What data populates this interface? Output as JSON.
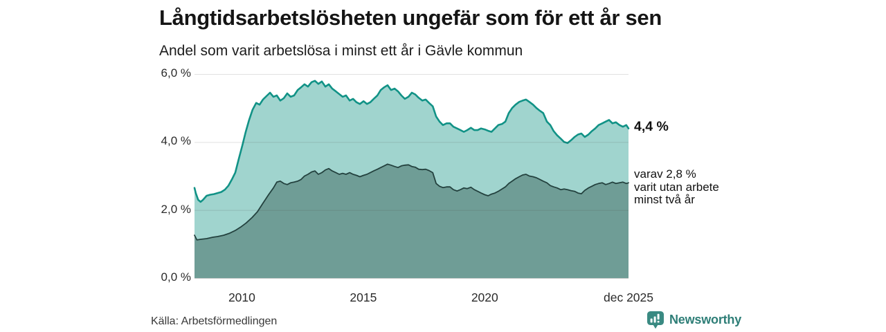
{
  "chart_data": {
    "type": "area",
    "title": "Långtidsarbetslösheten ungefär som för ett år sen",
    "subtitle": "Andel som varit arbetslösa i minst ett år i Gävle kommun",
    "unit": "%",
    "xlim": [
      2008.05,
      2025.92
    ],
    "ylim": [
      0,
      6
    ],
    "grid": true,
    "legend_position": "none",
    "x_ticks": [
      {
        "label": "2010",
        "year": 2010
      },
      {
        "label": "2015",
        "year": 2015
      },
      {
        "label": "2020",
        "year": 2020
      },
      {
        "label": "dec 2025",
        "year": 2025.92
      }
    ],
    "y_ticks": [
      {
        "label": "6,0 %",
        "value": 6
      },
      {
        "label": "4,0 %",
        "value": 4
      },
      {
        "label": "2,0 %",
        "value": 2
      },
      {
        "label": "0,0 %",
        "value": 0
      }
    ],
    "series": [
      {
        "id": "minst-ett-ar",
        "name": "Andel arbetslösa minst ett år",
        "latest_value": "4,4 %",
        "fill": "#a0d4ce",
        "stroke": "#119286",
        "stroke_width": 2.6,
        "points": [
          [
            2008.05,
            2.65
          ],
          [
            2008.1,
            2.5
          ],
          [
            2008.2,
            2.3
          ],
          [
            2008.3,
            2.24
          ],
          [
            2008.4,
            2.3
          ],
          [
            2008.55,
            2.42
          ],
          [
            2008.7,
            2.45
          ],
          [
            2008.85,
            2.47
          ],
          [
            2009.0,
            2.5
          ],
          [
            2009.15,
            2.53
          ],
          [
            2009.3,
            2.6
          ],
          [
            2009.45,
            2.72
          ],
          [
            2009.59,
            2.9
          ],
          [
            2009.73,
            3.1
          ],
          [
            2009.87,
            3.5
          ],
          [
            2010.02,
            3.9
          ],
          [
            2010.16,
            4.3
          ],
          [
            2010.3,
            4.65
          ],
          [
            2010.44,
            4.95
          ],
          [
            2010.59,
            5.15
          ],
          [
            2010.73,
            5.1
          ],
          [
            2010.87,
            5.25
          ],
          [
            2011.01,
            5.35
          ],
          [
            2011.16,
            5.45
          ],
          [
            2011.3,
            5.33
          ],
          [
            2011.44,
            5.37
          ],
          [
            2011.58,
            5.22
          ],
          [
            2011.73,
            5.29
          ],
          [
            2011.87,
            5.43
          ],
          [
            2012.01,
            5.33
          ],
          [
            2012.15,
            5.37
          ],
          [
            2012.3,
            5.53
          ],
          [
            2012.44,
            5.61
          ],
          [
            2012.58,
            5.7
          ],
          [
            2012.72,
            5.63
          ],
          [
            2012.87,
            5.76
          ],
          [
            2013.01,
            5.8
          ],
          [
            2013.15,
            5.71
          ],
          [
            2013.29,
            5.78
          ],
          [
            2013.44,
            5.63
          ],
          [
            2013.58,
            5.7
          ],
          [
            2013.72,
            5.57
          ],
          [
            2013.87,
            5.49
          ],
          [
            2014.01,
            5.41
          ],
          [
            2014.15,
            5.33
          ],
          [
            2014.29,
            5.37
          ],
          [
            2014.44,
            5.22
          ],
          [
            2014.58,
            5.27
          ],
          [
            2014.72,
            5.17
          ],
          [
            2014.86,
            5.12
          ],
          [
            2015.01,
            5.2
          ],
          [
            2015.15,
            5.12
          ],
          [
            2015.29,
            5.17
          ],
          [
            2015.43,
            5.27
          ],
          [
            2015.58,
            5.37
          ],
          [
            2015.72,
            5.53
          ],
          [
            2015.86,
            5.61
          ],
          [
            2016.0,
            5.67
          ],
          [
            2016.14,
            5.53
          ],
          [
            2016.29,
            5.57
          ],
          [
            2016.43,
            5.49
          ],
          [
            2016.57,
            5.37
          ],
          [
            2016.71,
            5.27
          ],
          [
            2016.86,
            5.33
          ],
          [
            2017.0,
            5.45
          ],
          [
            2017.14,
            5.4
          ],
          [
            2017.28,
            5.3
          ],
          [
            2017.43,
            5.22
          ],
          [
            2017.57,
            5.25
          ],
          [
            2017.71,
            5.15
          ],
          [
            2017.86,
            5.05
          ],
          [
            2018.0,
            4.75
          ],
          [
            2018.14,
            4.6
          ],
          [
            2018.28,
            4.5
          ],
          [
            2018.43,
            4.55
          ],
          [
            2018.57,
            4.55
          ],
          [
            2018.71,
            4.45
          ],
          [
            2018.86,
            4.4
          ],
          [
            2019.0,
            4.35
          ],
          [
            2019.14,
            4.3
          ],
          [
            2019.28,
            4.35
          ],
          [
            2019.43,
            4.42
          ],
          [
            2019.57,
            4.35
          ],
          [
            2019.71,
            4.35
          ],
          [
            2019.85,
            4.4
          ],
          [
            2020.0,
            4.37
          ],
          [
            2020.14,
            4.33
          ],
          [
            2020.28,
            4.3
          ],
          [
            2020.42,
            4.4
          ],
          [
            2020.56,
            4.5
          ],
          [
            2020.71,
            4.53
          ],
          [
            2020.85,
            4.6
          ],
          [
            2020.99,
            4.85
          ],
          [
            2021.13,
            5.0
          ],
          [
            2021.27,
            5.1
          ],
          [
            2021.42,
            5.18
          ],
          [
            2021.56,
            5.22
          ],
          [
            2021.7,
            5.25
          ],
          [
            2021.84,
            5.18
          ],
          [
            2021.99,
            5.1
          ],
          [
            2022.13,
            5.0
          ],
          [
            2022.27,
            4.92
          ],
          [
            2022.41,
            4.85
          ],
          [
            2022.56,
            4.6
          ],
          [
            2022.7,
            4.5
          ],
          [
            2022.84,
            4.32
          ],
          [
            2022.98,
            4.2
          ],
          [
            2023.13,
            4.1
          ],
          [
            2023.27,
            4.0
          ],
          [
            2023.41,
            3.97
          ],
          [
            2023.55,
            4.05
          ],
          [
            2023.7,
            4.15
          ],
          [
            2023.84,
            4.22
          ],
          [
            2023.98,
            4.25
          ],
          [
            2024.12,
            4.15
          ],
          [
            2024.27,
            4.22
          ],
          [
            2024.41,
            4.32
          ],
          [
            2024.55,
            4.4
          ],
          [
            2024.69,
            4.5
          ],
          [
            2024.84,
            4.55
          ],
          [
            2024.98,
            4.6
          ],
          [
            2025.12,
            4.65
          ],
          [
            2025.26,
            4.55
          ],
          [
            2025.4,
            4.58
          ],
          [
            2025.55,
            4.5
          ],
          [
            2025.69,
            4.45
          ],
          [
            2025.83,
            4.5
          ],
          [
            2025.92,
            4.4
          ]
        ]
      },
      {
        "id": "minst-tva-ar",
        "name": "Andel arbetslösa minst två år",
        "latest_value": "2,8 %",
        "fill": "#6f9d96",
        "stroke": "#23413e",
        "stroke_width": 1.8,
        "points": [
          [
            2008.05,
            1.26
          ],
          [
            2008.15,
            1.12
          ],
          [
            2008.3,
            1.14
          ],
          [
            2008.55,
            1.16
          ],
          [
            2008.8,
            1.2
          ],
          [
            2009.0,
            1.22
          ],
          [
            2009.25,
            1.26
          ],
          [
            2009.5,
            1.32
          ],
          [
            2009.73,
            1.4
          ],
          [
            2009.95,
            1.5
          ],
          [
            2010.18,
            1.62
          ],
          [
            2010.42,
            1.78
          ],
          [
            2010.64,
            1.95
          ],
          [
            2010.87,
            2.2
          ],
          [
            2011.1,
            2.45
          ],
          [
            2011.3,
            2.65
          ],
          [
            2011.44,
            2.82
          ],
          [
            2011.58,
            2.85
          ],
          [
            2011.73,
            2.78
          ],
          [
            2011.87,
            2.75
          ],
          [
            2012.01,
            2.8
          ],
          [
            2012.15,
            2.82
          ],
          [
            2012.3,
            2.85
          ],
          [
            2012.44,
            2.9
          ],
          [
            2012.58,
            3.0
          ],
          [
            2012.72,
            3.05
          ],
          [
            2012.87,
            3.12
          ],
          [
            2013.01,
            3.15
          ],
          [
            2013.15,
            3.05
          ],
          [
            2013.29,
            3.1
          ],
          [
            2013.44,
            3.18
          ],
          [
            2013.58,
            3.22
          ],
          [
            2013.72,
            3.15
          ],
          [
            2013.87,
            3.1
          ],
          [
            2014.01,
            3.05
          ],
          [
            2014.15,
            3.08
          ],
          [
            2014.29,
            3.05
          ],
          [
            2014.44,
            3.1
          ],
          [
            2014.58,
            3.05
          ],
          [
            2014.72,
            3.02
          ],
          [
            2014.86,
            2.98
          ],
          [
            2015.01,
            3.02
          ],
          [
            2015.15,
            3.05
          ],
          [
            2015.29,
            3.1
          ],
          [
            2015.43,
            3.15
          ],
          [
            2015.58,
            3.2
          ],
          [
            2015.72,
            3.25
          ],
          [
            2015.86,
            3.3
          ],
          [
            2016.0,
            3.35
          ],
          [
            2016.14,
            3.32
          ],
          [
            2016.29,
            3.28
          ],
          [
            2016.43,
            3.25
          ],
          [
            2016.57,
            3.3
          ],
          [
            2016.71,
            3.32
          ],
          [
            2016.86,
            3.33
          ],
          [
            2017.0,
            3.28
          ],
          [
            2017.14,
            3.26
          ],
          [
            2017.28,
            3.2
          ],
          [
            2017.43,
            3.19
          ],
          [
            2017.57,
            3.2
          ],
          [
            2017.71,
            3.16
          ],
          [
            2017.86,
            3.1
          ],
          [
            2018.0,
            2.78
          ],
          [
            2018.14,
            2.7
          ],
          [
            2018.28,
            2.66
          ],
          [
            2018.43,
            2.68
          ],
          [
            2018.57,
            2.68
          ],
          [
            2018.71,
            2.6
          ],
          [
            2018.86,
            2.56
          ],
          [
            2019.0,
            2.6
          ],
          [
            2019.14,
            2.65
          ],
          [
            2019.28,
            2.63
          ],
          [
            2019.43,
            2.67
          ],
          [
            2019.57,
            2.6
          ],
          [
            2019.71,
            2.55
          ],
          [
            2019.85,
            2.5
          ],
          [
            2020.0,
            2.45
          ],
          [
            2020.14,
            2.42
          ],
          [
            2020.28,
            2.47
          ],
          [
            2020.42,
            2.5
          ],
          [
            2020.56,
            2.55
          ],
          [
            2020.71,
            2.62
          ],
          [
            2020.85,
            2.68
          ],
          [
            2020.99,
            2.78
          ],
          [
            2021.13,
            2.85
          ],
          [
            2021.27,
            2.92
          ],
          [
            2021.42,
            2.98
          ],
          [
            2021.56,
            3.03
          ],
          [
            2021.7,
            3.05
          ],
          [
            2021.84,
            3.0
          ],
          [
            2021.99,
            2.98
          ],
          [
            2022.13,
            2.95
          ],
          [
            2022.27,
            2.9
          ],
          [
            2022.41,
            2.85
          ],
          [
            2022.56,
            2.8
          ],
          [
            2022.7,
            2.72
          ],
          [
            2022.84,
            2.68
          ],
          [
            2022.98,
            2.65
          ],
          [
            2023.13,
            2.6
          ],
          [
            2023.27,
            2.62
          ],
          [
            2023.41,
            2.6
          ],
          [
            2023.55,
            2.57
          ],
          [
            2023.7,
            2.55
          ],
          [
            2023.84,
            2.5
          ],
          [
            2023.98,
            2.48
          ],
          [
            2024.12,
            2.58
          ],
          [
            2024.27,
            2.65
          ],
          [
            2024.41,
            2.7
          ],
          [
            2024.55,
            2.75
          ],
          [
            2024.69,
            2.78
          ],
          [
            2024.84,
            2.8
          ],
          [
            2024.98,
            2.75
          ],
          [
            2025.12,
            2.78
          ],
          [
            2025.26,
            2.82
          ],
          [
            2025.4,
            2.78
          ],
          [
            2025.55,
            2.8
          ],
          [
            2025.69,
            2.82
          ],
          [
            2025.83,
            2.78
          ],
          [
            2025.92,
            2.8
          ]
        ]
      }
    ]
  },
  "annotations": {
    "latest_total": "4,4 %",
    "latest_sub": "varav 2,8 %\nvarit utan arbete\nminst två år"
  },
  "footer": {
    "source": "Källa: Arbetsförmedlingen",
    "brand": "Newsworthy"
  },
  "colors": {
    "accent_teal": "#119286",
    "light_fill": "#a0d4ce",
    "dark_fill": "#6f9d96",
    "dark_stroke": "#23413e",
    "grid": "#dcdddd",
    "brand_teal": "#2e7e77"
  }
}
